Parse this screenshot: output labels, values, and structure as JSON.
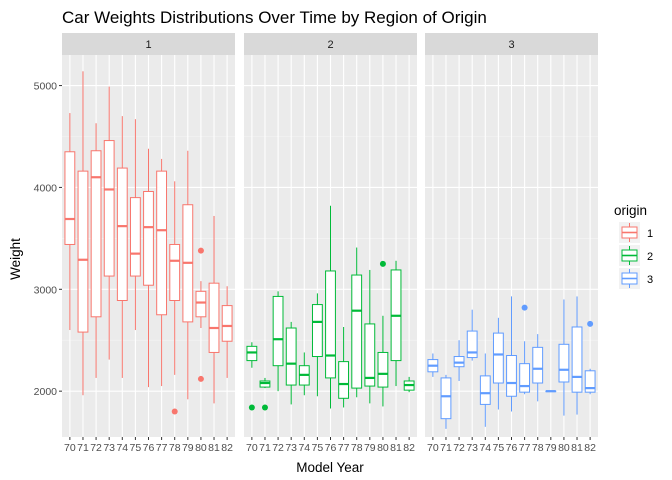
{
  "chart_data": {
    "type": "boxplot",
    "title": "Car Weights Distributions Over Time by Region of Origin",
    "xlabel": "Model Year",
    "ylabel": "Weight",
    "ylim": [
      1550,
      5300
    ],
    "y_ticks": [
      2000,
      3000,
      4000,
      5000
    ],
    "categories": [
      "70",
      "71",
      "72",
      "73",
      "74",
      "75",
      "76",
      "77",
      "78",
      "79",
      "80",
      "81",
      "82"
    ],
    "facet_title": "",
    "legend": {
      "title": "origin",
      "position": "right"
    },
    "grid": true,
    "colors": {
      "1": "#F8766D",
      "2": "#00BA38",
      "3": "#619CFF",
      "panel_bg": "#EBEBEB",
      "strip_bg": "#D9D9D9",
      "grid": "#FFFFFF"
    },
    "series": [
      {
        "name": "1",
        "color": "#F8766D",
        "boxes": [
          {
            "x": "70",
            "lower_whisker": 2600,
            "q1": 3440,
            "median": 3690,
            "q3": 4350,
            "upper_whisker": 4730,
            "outliers": []
          },
          {
            "x": "71",
            "lower_whisker": 1960,
            "q1": 2580,
            "median": 3290,
            "q3": 4160,
            "upper_whisker": 5140,
            "outliers": []
          },
          {
            "x": "72",
            "lower_whisker": 2130,
            "q1": 2730,
            "median": 4100,
            "q3": 4360,
            "upper_whisker": 4630,
            "outliers": []
          },
          {
            "x": "73",
            "lower_whisker": 2310,
            "q1": 3130,
            "median": 3980,
            "q3": 4460,
            "upper_whisker": 4990,
            "outliers": []
          },
          {
            "x": "74",
            "lower_whisker": 2130,
            "q1": 2890,
            "median": 3620,
            "q3": 4190,
            "upper_whisker": 4700,
            "outliers": []
          },
          {
            "x": "75",
            "lower_whisker": 2600,
            "q1": 3130,
            "median": 3350,
            "q3": 3900,
            "upper_whisker": 4670,
            "outliers": []
          },
          {
            "x": "76",
            "lower_whisker": 2040,
            "q1": 3040,
            "median": 3610,
            "q3": 3960,
            "upper_whisker": 4380,
            "outliers": []
          },
          {
            "x": "77",
            "lower_whisker": 2050,
            "q1": 2750,
            "median": 3580,
            "q3": 4160,
            "upper_whisker": 4280,
            "outliers": []
          },
          {
            "x": "78",
            "lower_whisker": 2160,
            "q1": 2890,
            "median": 3280,
            "q3": 3440,
            "upper_whisker": 4060,
            "outliers": [
              1800
            ]
          },
          {
            "x": "79",
            "lower_whisker": 1920,
            "q1": 2680,
            "median": 3260,
            "q3": 3830,
            "upper_whisker": 4360,
            "outliers": []
          },
          {
            "x": "80",
            "lower_whisker": 2620,
            "q1": 2730,
            "median": 2870,
            "q3": 2980,
            "upper_whisker": 3080,
            "outliers": [
              3380,
              2120
            ]
          },
          {
            "x": "81",
            "lower_whisker": 1880,
            "q1": 2380,
            "median": 2620,
            "q3": 3060,
            "upper_whisker": 3720,
            "outliers": []
          },
          {
            "x": "82",
            "lower_whisker": 2130,
            "q1": 2490,
            "median": 2640,
            "q3": 2840,
            "upper_whisker": 3030,
            "outliers": []
          }
        ]
      },
      {
        "name": "2",
        "color": "#00BA38",
        "boxes": [
          {
            "x": "70",
            "lower_whisker": 2230,
            "q1": 2300,
            "median": 2380,
            "q3": 2440,
            "upper_whisker": 2480,
            "outliers": [
              1840
            ]
          },
          {
            "x": "71",
            "lower_whisker": 2030,
            "q1": 2040,
            "median": 2080,
            "q3": 2100,
            "upper_whisker": 2130,
            "outliers": [
              1840
            ]
          },
          {
            "x": "72",
            "lower_whisker": 2000,
            "q1": 2250,
            "median": 2510,
            "q3": 2930,
            "upper_whisker": 2980,
            "outliers": []
          },
          {
            "x": "73",
            "lower_whisker": 1870,
            "q1": 2060,
            "median": 2270,
            "q3": 2620,
            "upper_whisker": 2680,
            "outliers": []
          },
          {
            "x": "74",
            "lower_whisker": 1960,
            "q1": 2060,
            "median": 2160,
            "q3": 2250,
            "upper_whisker": 2380,
            "outliers": []
          },
          {
            "x": "75",
            "lower_whisker": 1950,
            "q1": 2340,
            "median": 2680,
            "q3": 2850,
            "upper_whisker": 2960,
            "outliers": []
          },
          {
            "x": "76",
            "lower_whisker": 1830,
            "q1": 2130,
            "median": 2350,
            "q3": 3180,
            "upper_whisker": 3820,
            "outliers": []
          },
          {
            "x": "77",
            "lower_whisker": 1840,
            "q1": 1930,
            "median": 2070,
            "q3": 2290,
            "upper_whisker": 2630,
            "outliers": []
          },
          {
            "x": "78",
            "lower_whisker": 1940,
            "q1": 2030,
            "median": 2790,
            "q3": 3140,
            "upper_whisker": 3410,
            "outliers": []
          },
          {
            "x": "79",
            "lower_whisker": 1880,
            "q1": 2050,
            "median": 2130,
            "q3": 2660,
            "upper_whisker": 3190,
            "outliers": []
          },
          {
            "x": "80",
            "lower_whisker": 1850,
            "q1": 2040,
            "median": 2170,
            "q3": 2380,
            "upper_whisker": 2740,
            "outliers": [
              3250
            ]
          },
          {
            "x": "81",
            "lower_whisker": 2050,
            "q1": 2300,
            "median": 2740,
            "q3": 3190,
            "upper_whisker": 3280,
            "outliers": []
          },
          {
            "x": "82",
            "lower_whisker": 1990,
            "q1": 2010,
            "median": 2060,
            "q3": 2100,
            "upper_whisker": 2140,
            "outliers": []
          }
        ]
      },
      {
        "name": "3",
        "color": "#619CFF",
        "boxes": [
          {
            "x": "70",
            "lower_whisker": 2140,
            "q1": 2190,
            "median": 2250,
            "q3": 2310,
            "upper_whisker": 2370,
            "outliers": []
          },
          {
            "x": "71",
            "lower_whisker": 1630,
            "q1": 1730,
            "median": 1950,
            "q3": 2130,
            "upper_whisker": 2160,
            "outliers": []
          },
          {
            "x": "72",
            "lower_whisker": 2100,
            "q1": 2240,
            "median": 2280,
            "q3": 2340,
            "upper_whisker": 2500,
            "outliers": []
          },
          {
            "x": "73",
            "lower_whisker": 2300,
            "q1": 2330,
            "median": 2380,
            "q3": 2590,
            "upper_whisker": 2800,
            "outliers": []
          },
          {
            "x": "74",
            "lower_whisker": 1650,
            "q1": 1870,
            "median": 1980,
            "q3": 2150,
            "upper_whisker": 2370,
            "outliers": []
          },
          {
            "x": "75",
            "lower_whisker": 1820,
            "q1": 2080,
            "median": 2360,
            "q3": 2570,
            "upper_whisker": 2720,
            "outliers": []
          },
          {
            "x": "76",
            "lower_whisker": 1800,
            "q1": 1950,
            "median": 2080,
            "q3": 2350,
            "upper_whisker": 2930,
            "outliers": []
          },
          {
            "x": "77",
            "lower_whisker": 1970,
            "q1": 1990,
            "median": 2050,
            "q3": 2270,
            "upper_whisker": 2490,
            "outliers": [
              2820
            ]
          },
          {
            "x": "78",
            "lower_whisker": 1900,
            "q1": 2080,
            "median": 2220,
            "q3": 2430,
            "upper_whisker": 2560,
            "outliers": []
          },
          {
            "x": "79",
            "lower_whisker": 2000,
            "q1": 2000,
            "median": 2000,
            "q3": 2000,
            "upper_whisker": 2000,
            "outliers": []
          },
          {
            "x": "80",
            "lower_whisker": 1760,
            "q1": 2090,
            "median": 2210,
            "q3": 2460,
            "upper_whisker": 2900,
            "outliers": []
          },
          {
            "x": "81",
            "lower_whisker": 1770,
            "q1": 1990,
            "median": 2140,
            "q3": 2630,
            "upper_whisker": 2930,
            "outliers": []
          },
          {
            "x": "82",
            "lower_whisker": 1970,
            "q1": 1990,
            "median": 2030,
            "q3": 2200,
            "upper_whisker": 2220,
            "outliers": [
              2660
            ]
          }
        ]
      }
    ]
  }
}
